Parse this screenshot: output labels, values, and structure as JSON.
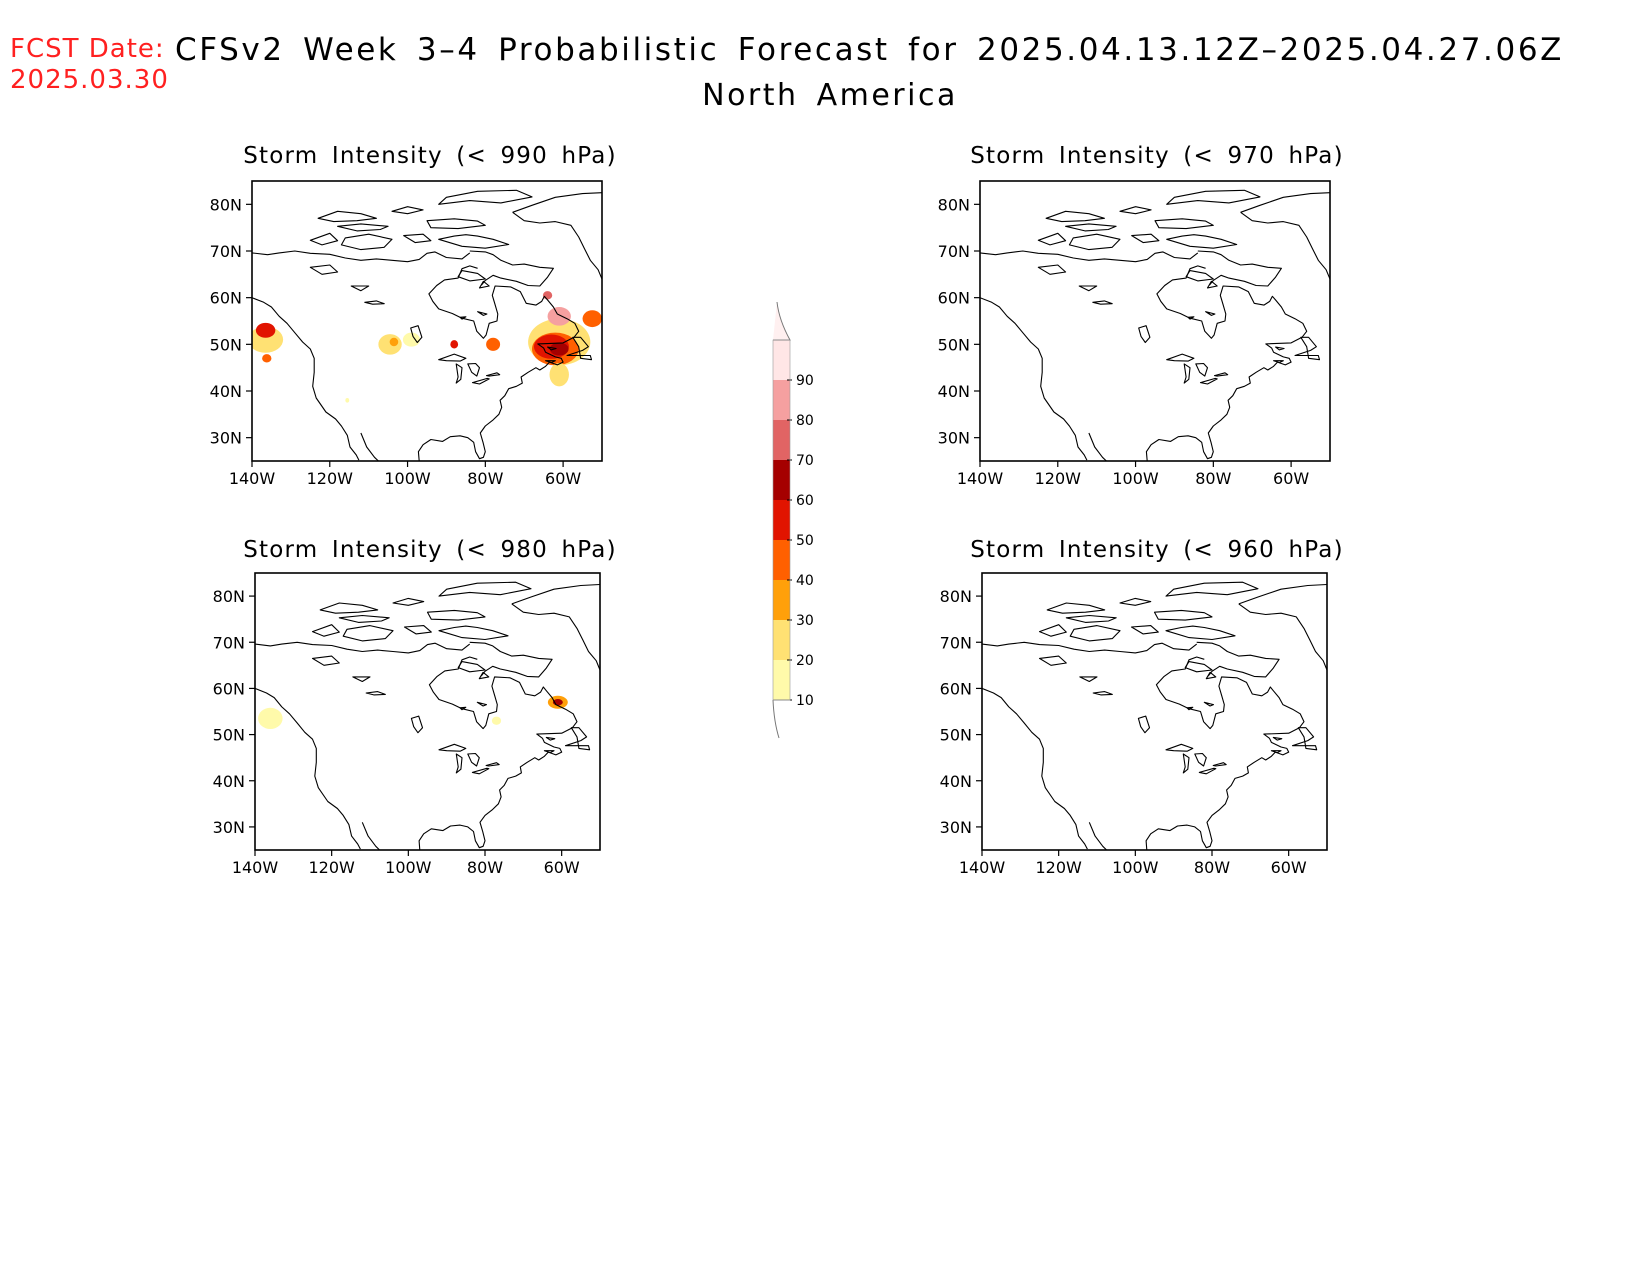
{
  "header": {
    "fcst_label": "FCST Date:",
    "fcst_date": "2025.03.30",
    "title": "CFSv2 Week 3–4 Probabilistic Forecast for 2025.04.13.12Z–2025.04.27.06Z",
    "region": "North America"
  },
  "axes": {
    "lat_ticks": [
      80,
      70,
      60,
      50,
      40,
      30
    ],
    "lat_labels": [
      "80N",
      "70N",
      "60N",
      "50N",
      "40N",
      "30N"
    ],
    "lon_ticks": [
      -140,
      -120,
      -100,
      -80,
      -60
    ],
    "lon_labels": [
      "140W",
      "120W",
      "100W",
      "80W",
      "60W"
    ],
    "lon_range": [
      -140,
      -50
    ],
    "lat_range": [
      25,
      85
    ]
  },
  "panels": [
    {
      "id": "p990",
      "title": "Storm Intensity (< 990 hPa)",
      "blobs": [
        {
          "lon": -136.5,
          "lat": 51,
          "level": 20,
          "r": 2.8,
          "rl": 4.5
        },
        {
          "lon": -136.5,
          "lat": 53,
          "level": 50,
          "r": 1.6,
          "rl": 2.5
        },
        {
          "lon": -136.2,
          "lat": 47,
          "level": 40,
          "r": 0.9,
          "rl": 1.2
        },
        {
          "lon": -104.5,
          "lat": 50,
          "level": 20,
          "r": 2.2,
          "rl": 3
        },
        {
          "lon": -99,
          "lat": 51,
          "level": 10,
          "r": 1.5,
          "rl": 2.2
        },
        {
          "lon": -103.5,
          "lat": 50.5,
          "level": 30,
          "r": 0.9,
          "rl": 1.1
        },
        {
          "lon": -88,
          "lat": 50,
          "level": 50,
          "r": 0.9,
          "rl": 1
        },
        {
          "lon": -78,
          "lat": 50,
          "level": 40,
          "r": 1.4,
          "rl": 1.8
        },
        {
          "lon": -61,
          "lat": 50.5,
          "level": 20,
          "r": 5,
          "rl": 8
        },
        {
          "lon": -62,
          "lat": 49,
          "level": 40,
          "r": 3.5,
          "rl": 6
        },
        {
          "lon": -63,
          "lat": 49.5,
          "level": 50,
          "r": 2.6,
          "rl": 4.5
        },
        {
          "lon": -61,
          "lat": 49,
          "level": 60,
          "r": 1.4,
          "rl": 2.4
        },
        {
          "lon": -61,
          "lat": 56,
          "level": 80,
          "r": 2,
          "rl": 3
        },
        {
          "lon": -64,
          "lat": 60.5,
          "level": 70,
          "r": 0.9,
          "rl": 1.2
        },
        {
          "lon": -52.5,
          "lat": 55.5,
          "level": 40,
          "r": 1.8,
          "rl": 2.5
        },
        {
          "lon": -61,
          "lat": 43.5,
          "level": 20,
          "r": 2.5,
          "rl": 2.5
        },
        {
          "lon": -115.5,
          "lat": 38,
          "level": 10,
          "r": 0.5,
          "rl": 0.5
        }
      ]
    },
    {
      "id": "p970",
      "title": "Storm Intensity (< 970 hPa)",
      "blobs": []
    },
    {
      "id": "p980",
      "title": "Storm Intensity (< 980 hPa)",
      "blobs": [
        {
          "lon": -136,
          "lat": 53.5,
          "level": 10,
          "r": 2.3,
          "rl": 3.2
        },
        {
          "lon": -77,
          "lat": 53,
          "level": 10,
          "r": 0.9,
          "rl": 1.2
        },
        {
          "lon": -61,
          "lat": 57,
          "level": 30,
          "r": 1.4,
          "rl": 2.6
        },
        {
          "lon": -61,
          "lat": 57,
          "level": 60,
          "r": 0.7,
          "rl": 1.3
        }
      ]
    },
    {
      "id": "p960",
      "title": "Storm Intensity (< 960 hPa)",
      "blobs": []
    }
  ],
  "colorbar": {
    "labels": [
      "10",
      "20",
      "30",
      "40",
      "50",
      "60",
      "70",
      "80",
      "90"
    ],
    "levels": [
      10,
      20,
      30,
      40,
      50,
      60,
      70,
      80,
      90
    ],
    "colors": [
      "#fffaaa",
      "#ffe173",
      "#ffa00a",
      "#ff6000",
      "#e11400",
      "#a50000",
      "#e16464",
      "#f5a0a0",
      "#ffe6e6"
    ]
  }
}
